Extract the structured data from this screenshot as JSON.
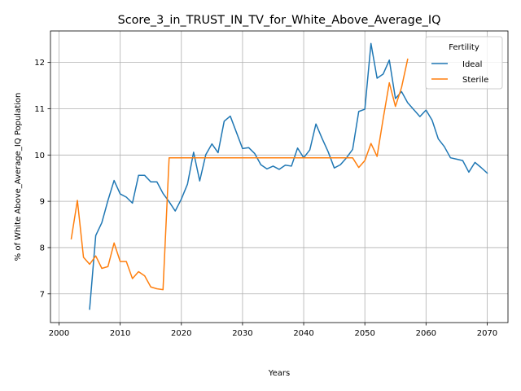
{
  "chart_data": {
    "type": "line",
    "title": "Score_3_in_TRUST_IN_TV_for_White_Above_Average_IQ",
    "xlabel": "Years",
    "ylabel": "% of White Above_Average_IQ Population",
    "xlim": [
      1998.6,
      2073.4
    ],
    "ylim": [
      6.38,
      12.68
    ],
    "xticks": [
      2000,
      2010,
      2020,
      2030,
      2040,
      2050,
      2060,
      2070
    ],
    "yticks": [
      7,
      8,
      9,
      10,
      11,
      12
    ],
    "grid": true,
    "legend": {
      "title": "Fertility",
      "placement": "top-right"
    },
    "series": [
      {
        "name": "Ideal",
        "color": "#1f77b4",
        "x": [
          2005,
          2006,
          2007,
          2008,
          2009,
          2010,
          2011,
          2012,
          2013,
          2014,
          2015,
          2016,
          2017,
          2018,
          2019,
          2020,
          2021,
          2022,
          2023,
          2024,
          2025,
          2026,
          2027,
          2028,
          2029,
          2030,
          2031,
          2032,
          2033,
          2034,
          2035,
          2036,
          2037,
          2038,
          2039,
          2040,
          2041,
          2042,
          2043,
          2044,
          2045,
          2046,
          2047,
          2048,
          2049,
          2050,
          2051,
          2052,
          2053,
          2054,
          2055,
          2056,
          2057,
          2058,
          2059,
          2060,
          2061,
          2062,
          2063,
          2064,
          2065,
          2066,
          2067,
          2068,
          2069,
          2070
        ],
        "values": [
          6.67,
          8.26,
          8.54,
          9.02,
          9.45,
          9.16,
          9.09,
          8.96,
          9.56,
          9.56,
          9.42,
          9.42,
          9.17,
          8.99,
          8.79,
          9.05,
          9.37,
          10.06,
          9.44,
          10.01,
          10.24,
          10.05,
          10.73,
          10.84,
          10.49,
          10.14,
          10.16,
          10.03,
          9.79,
          9.7,
          9.76,
          9.69,
          9.78,
          9.76,
          10.15,
          9.94,
          10.11,
          10.67,
          10.36,
          10.07,
          9.72,
          9.79,
          9.94,
          10.12,
          10.94,
          10.99,
          12.41,
          11.66,
          11.75,
          12.05,
          11.22,
          11.37,
          11.13,
          10.98,
          10.83,
          10.97,
          10.75,
          10.35,
          10.18,
          9.94,
          9.91,
          9.88,
          9.63,
          9.84,
          9.73,
          9.61
        ]
      },
      {
        "name": "Sterile",
        "color": "#ff7f0e",
        "x": [
          2002,
          2003,
          2004,
          2005,
          2006,
          2007,
          2008,
          2009,
          2010,
          2011,
          2012,
          2013,
          2014,
          2015,
          2016,
          2017,
          2018,
          2019,
          2020,
          2021,
          2022,
          2023,
          2024,
          2025,
          2026,
          2027,
          2028,
          2029,
          2030,
          2031,
          2032,
          2033,
          2034,
          2035,
          2036,
          2037,
          2038,
          2039,
          2040,
          2041,
          2042,
          2043,
          2044,
          2045,
          2046,
          2047,
          2048,
          2049,
          2050,
          2051,
          2052,
          2053,
          2054,
          2055,
          2056,
          2057
        ],
        "values": [
          8.19,
          9.02,
          7.79,
          7.64,
          7.82,
          7.55,
          7.59,
          8.1,
          7.7,
          7.7,
          7.33,
          7.48,
          7.39,
          7.15,
          7.11,
          7.09,
          9.94,
          9.94,
          9.94,
          9.94,
          9.94,
          9.94,
          9.94,
          9.94,
          9.94,
          9.94,
          9.94,
          9.94,
          9.94,
          9.94,
          9.94,
          9.94,
          9.94,
          9.94,
          9.94,
          9.94,
          9.94,
          9.94,
          9.94,
          9.94,
          9.94,
          9.94,
          9.94,
          9.94,
          9.94,
          9.94,
          9.94,
          9.73,
          9.88,
          10.25,
          9.97,
          10.79,
          11.56,
          11.05,
          11.46,
          12.07
        ]
      }
    ]
  }
}
